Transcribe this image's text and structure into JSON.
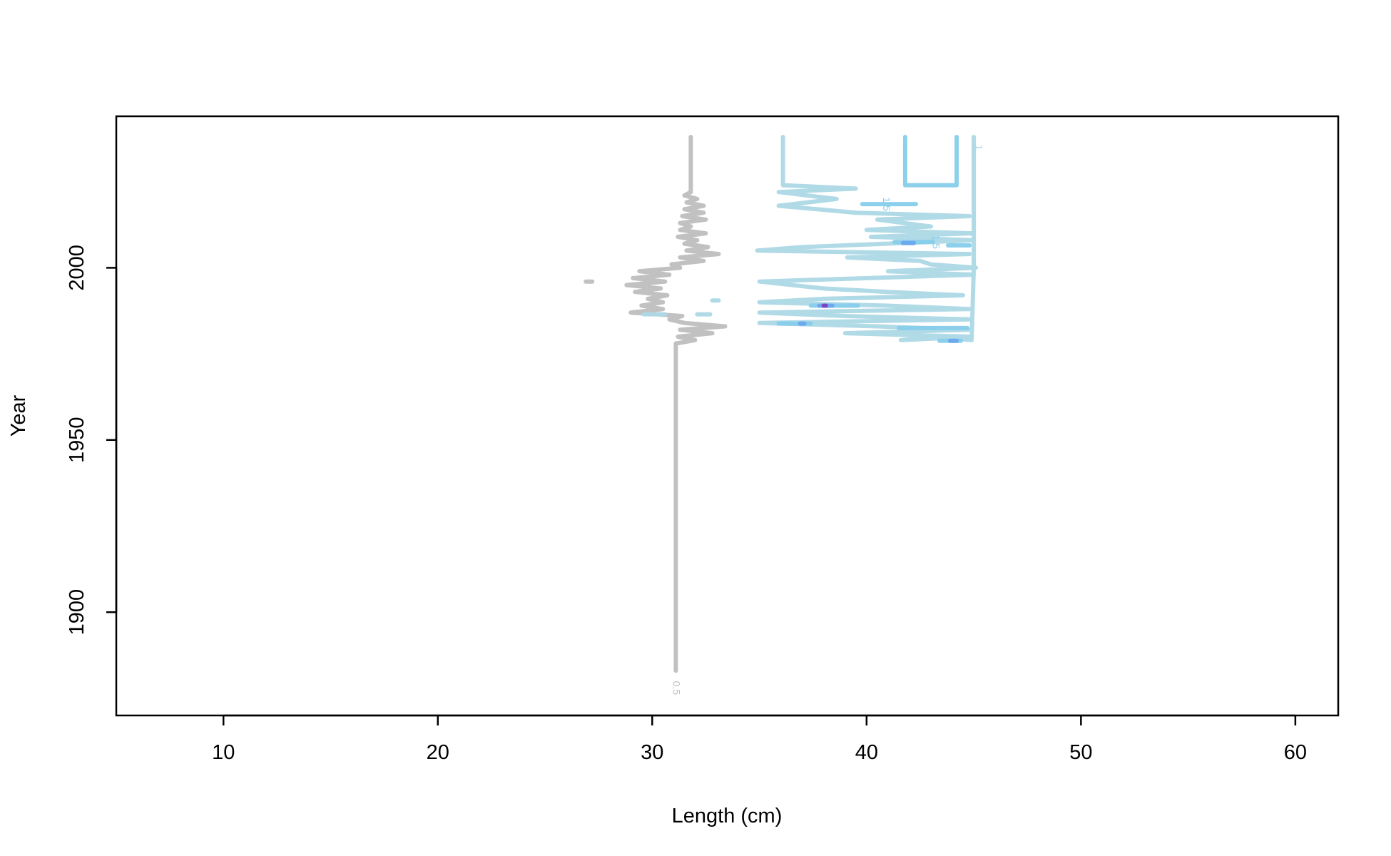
{
  "chart_data": {
    "type": "contour",
    "title": "",
    "xlabel": "Length (cm)",
    "ylabel": "Year",
    "xlim": [
      5,
      62
    ],
    "ylim": [
      1870,
      2044
    ],
    "xticks": [
      10,
      20,
      30,
      40,
      50,
      60
    ],
    "yticks": [
      1900,
      1950,
      2000
    ],
    "grid": false,
    "legend": "none",
    "colors": {
      "grey": "#BEBEBE",
      "light_blue": "#ADD8E6",
      "sky_blue": "#87CEEB",
      "blue": "#6CA6EE",
      "dodger_blue": "#4A90F0",
      "purple": "#7B3FBF"
    },
    "contours": [
      {
        "level": "0.5",
        "color": "grey",
        "label": "0.5",
        "label_at": [
          31.1,
          1878
        ],
        "points": [
          [
            31.1,
            1883
          ],
          [
            31.1,
            1900
          ],
          [
            31.1,
            1930
          ],
          [
            31.1,
            1960
          ],
          [
            31.1,
            1978
          ],
          [
            32,
            1979
          ],
          [
            31.2,
            1980
          ],
          [
            32.8,
            1981
          ],
          [
            31.3,
            1982
          ],
          [
            33.4,
            1983
          ],
          [
            31.5,
            1984
          ],
          [
            30.8,
            1985
          ],
          [
            31.4,
            1986
          ],
          [
            29,
            1987
          ],
          [
            30.5,
            1988
          ],
          [
            29.5,
            1989
          ],
          [
            30.5,
            1990
          ],
          [
            29.8,
            1991
          ],
          [
            30.7,
            1992
          ],
          [
            29.2,
            1993
          ],
          [
            30.4,
            1994
          ],
          [
            28.8,
            1995
          ],
          [
            30.6,
            1996
          ],
          [
            29.1,
            1997
          ],
          [
            30.8,
            1998
          ],
          [
            29.4,
            1999
          ],
          [
            31.3,
            2000
          ],
          [
            30.9,
            2001
          ],
          [
            32.4,
            2002
          ],
          [
            31.3,
            2003
          ],
          [
            33.1,
            2004
          ],
          [
            31.6,
            2005
          ],
          [
            32.6,
            2006
          ],
          [
            31.5,
            2007
          ],
          [
            32.1,
            2008
          ],
          [
            31.2,
            2009
          ],
          [
            32.5,
            2010
          ],
          [
            31.3,
            2011
          ],
          [
            31.8,
            2012
          ],
          [
            31.3,
            2013
          ],
          [
            32.5,
            2014
          ],
          [
            31.4,
            2015
          ],
          [
            32.4,
            2016
          ],
          [
            31.5,
            2017
          ],
          [
            32.4,
            2018
          ],
          [
            31.6,
            2019
          ],
          [
            32.1,
            2020
          ],
          [
            31.5,
            2021
          ],
          [
            31.8,
            2022
          ],
          [
            31.8,
            2024
          ],
          [
            31.8,
            2030
          ],
          [
            31.8,
            2038
          ]
        ]
      },
      {
        "level": "0.5",
        "color": "grey",
        "label": "",
        "points": [
          [
            26.9,
            1996
          ],
          [
            27.2,
            1996
          ]
        ]
      },
      {
        "level": "1",
        "color": "light_blue",
        "label": "1",
        "label_at": [
          45.2,
          2035
        ],
        "points": [
          [
            36.1,
            2038
          ],
          [
            36.1,
            2024
          ],
          [
            39.5,
            2023
          ],
          [
            35.9,
            2022
          ],
          [
            38.6,
            2020
          ],
          [
            35.9,
            2018
          ],
          [
            37.7,
            2017
          ],
          [
            39.5,
            2016
          ],
          [
            44.8,
            2015
          ],
          [
            40.5,
            2014
          ],
          [
            43,
            2012
          ],
          [
            40,
            2011
          ],
          [
            44.9,
            2010
          ],
          [
            40.2,
            2009
          ],
          [
            45,
            2008
          ],
          [
            37,
            2006
          ],
          [
            34.9,
            2005
          ],
          [
            44.8,
            2004
          ],
          [
            39.1,
            2003
          ],
          [
            42.5,
            2002
          ],
          [
            43,
            2001
          ],
          [
            45.1,
            2000
          ],
          [
            41,
            1999
          ],
          [
            45,
            1998
          ],
          [
            35,
            1996
          ],
          [
            38,
            1994
          ],
          [
            41,
            1993
          ],
          [
            44.5,
            1992
          ],
          [
            38,
            1991
          ],
          [
            35,
            1990
          ],
          [
            41,
            1989
          ],
          [
            44.8,
            1988
          ],
          [
            35,
            1987
          ],
          [
            39,
            1986
          ],
          [
            44.8,
            1985
          ],
          [
            35,
            1984
          ],
          [
            40.5,
            1983
          ],
          [
            44.8,
            1982
          ],
          [
            39,
            1981
          ],
          [
            44.9,
            1980
          ],
          [
            41.6,
            1979
          ],
          [
            43.2,
            1980
          ],
          [
            44.9,
            1979
          ],
          [
            45,
            2000
          ],
          [
            45,
            2030
          ],
          [
            45,
            2038
          ]
        ]
      },
      {
        "level": "1",
        "color": "light_blue",
        "label": "",
        "points": [
          [
            29.6,
            1986.5
          ],
          [
            30.6,
            1986.5
          ]
        ]
      },
      {
        "level": "1",
        "color": "light_blue",
        "label": "",
        "points": [
          [
            32.7,
            1986.5
          ],
          [
            32.1,
            1986.5
          ]
        ]
      },
      {
        "level": "1",
        "color": "light_blue",
        "label": "",
        "points": [
          [
            32.8,
            1990.5
          ],
          [
            33.1,
            1990.5
          ]
        ]
      },
      {
        "level": "1.5",
        "color": "sky_blue",
        "label": "1.5",
        "label_at": [
          40.9,
          2018.5
        ],
        "points": [
          [
            41.8,
            2038
          ],
          [
            41.8,
            2024
          ],
          [
            43.4,
            2024
          ],
          [
            44.2,
            2024
          ],
          [
            44.2,
            2038
          ]
        ]
      },
      {
        "level": "1.5",
        "color": "sky_blue",
        "label": "",
        "points": [
          [
            39.8,
            2018.5
          ],
          [
            42.3,
            2018.5
          ]
        ]
      },
      {
        "level": "1.5",
        "color": "sky_blue",
        "label": "1.5",
        "label_at": [
          43.2,
          2007.5
        ],
        "points": [
          [
            41.3,
            2007.5
          ],
          [
            43.1,
            2007.5
          ]
        ]
      },
      {
        "level": "1.5",
        "color": "sky_blue",
        "label": "",
        "points": [
          [
            43.8,
            2006.5
          ],
          [
            44.8,
            2006.5
          ]
        ]
      },
      {
        "level": "1.5",
        "color": "sky_blue",
        "label": "",
        "points": [
          [
            37.4,
            1989
          ],
          [
            39.6,
            1989
          ]
        ]
      },
      {
        "level": "1.5",
        "color": "sky_blue",
        "label": "",
        "points": [
          [
            35.9,
            1983.8
          ],
          [
            37.4,
            1983.8
          ]
        ]
      },
      {
        "level": "1.5",
        "color": "sky_blue",
        "label": "",
        "points": [
          [
            41.5,
            1982.5
          ],
          [
            44.7,
            1982.5
          ]
        ]
      },
      {
        "level": "1.5",
        "color": "sky_blue",
        "label": "",
        "points": [
          [
            43.4,
            1978.8
          ],
          [
            44.4,
            1978.8
          ]
        ]
      },
      {
        "level": "2",
        "color": "blue",
        "label": "",
        "points": [
          [
            41.7,
            2007.2
          ],
          [
            42.2,
            2007.2
          ]
        ]
      },
      {
        "level": "2",
        "color": "blue",
        "label": "",
        "points": [
          [
            37.8,
            1989
          ],
          [
            38.4,
            1989
          ]
        ]
      },
      {
        "level": "2",
        "color": "blue",
        "label": "",
        "points": [
          [
            36.9,
            1983.8
          ],
          [
            37.1,
            1983.8
          ]
        ]
      },
      {
        "level": "2",
        "color": "blue",
        "label": "",
        "points": [
          [
            43.9,
            1978.8
          ],
          [
            44.2,
            1978.8
          ]
        ]
      },
      {
        "level": "2.5",
        "color": "purple",
        "label": "",
        "points": [
          [
            38.0,
            1989
          ],
          [
            38.1,
            1989
          ]
        ]
      }
    ]
  }
}
